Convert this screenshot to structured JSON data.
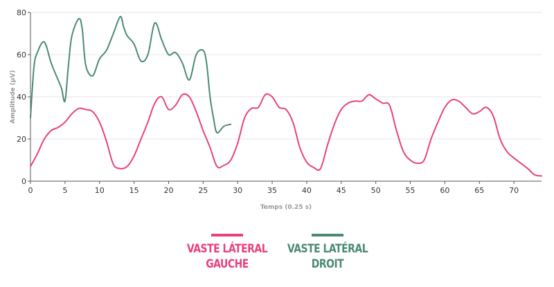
{
  "chart_data": {
    "type": "line",
    "xlabel": "Temps (0.25 s)",
    "ylabel": "Amplitude (µV)",
    "xlim": [
      0,
      74
    ],
    "ylim": [
      0,
      80
    ],
    "xticks": [
      0,
      5,
      10,
      15,
      20,
      25,
      30,
      35,
      40,
      45,
      50,
      55,
      60,
      65,
      70
    ],
    "yticks": [
      0,
      20,
      40,
      60,
      80
    ],
    "grid": "horizontal",
    "legend_position": "bottom",
    "series": [
      {
        "name": "VASTE LÁTERAL\nGAUCHE",
        "color": "#e8417e",
        "x": [
          0,
          1,
          2,
          3,
          4,
          5,
          6,
          7,
          8,
          9,
          10,
          11,
          12,
          13,
          14,
          15,
          16,
          17,
          18,
          19,
          20,
          21,
          22,
          23,
          24,
          25,
          26,
          27,
          28,
          29,
          30,
          31,
          32,
          33,
          34,
          35,
          36,
          37,
          38,
          39,
          40,
          41,
          42,
          43,
          44,
          45,
          46,
          47,
          48,
          49,
          50,
          51,
          52,
          53,
          54,
          55,
          56,
          57,
          58,
          59,
          60,
          61,
          62,
          63,
          64,
          65,
          66,
          67,
          68,
          69,
          70,
          71,
          72,
          73,
          74
        ],
        "y": [
          7,
          13,
          20,
          24,
          25.5,
          28,
          32,
          34.5,
          34,
          33,
          28,
          19,
          8,
          6,
          7,
          12,
          20,
          28,
          37,
          40,
          34,
          36,
          41,
          40,
          33,
          24,
          16,
          7,
          7.5,
          10,
          18,
          30,
          34.5,
          35,
          41,
          40,
          35,
          34,
          28,
          16,
          9,
          6.5,
          6,
          17,
          27,
          34,
          37,
          38,
          38,
          41,
          39,
          37,
          36,
          24,
          14,
          10,
          8.5,
          10,
          20,
          28,
          35,
          38.5,
          38,
          35,
          32,
          33,
          35,
          31,
          20,
          14,
          11,
          8.5,
          6,
          3,
          2.5
        ]
      },
      {
        "name": "VASTE LATÉRAL\nDROIT",
        "color": "#4a8a73",
        "x": [
          0,
          0.5,
          1,
          2,
          3,
          4,
          4.5,
          5,
          5.5,
          6,
          7,
          7.5,
          8,
          9,
          10,
          11,
          12,
          13,
          13.5,
          14,
          15,
          16,
          17,
          18,
          19,
          20,
          21,
          22,
          23,
          24,
          25,
          25.5,
          26,
          26.5,
          27,
          28,
          29
        ],
        "y": [
          30,
          54,
          61,
          66,
          56,
          48,
          44,
          38,
          55,
          69,
          77,
          72,
          55,
          50,
          58,
          62,
          70,
          78,
          73,
          69,
          65,
          57,
          60,
          75,
          67,
          60,
          61,
          56,
          48,
          60,
          62,
          56,
          40,
          30,
          23,
          26,
          27
        ]
      }
    ]
  }
}
